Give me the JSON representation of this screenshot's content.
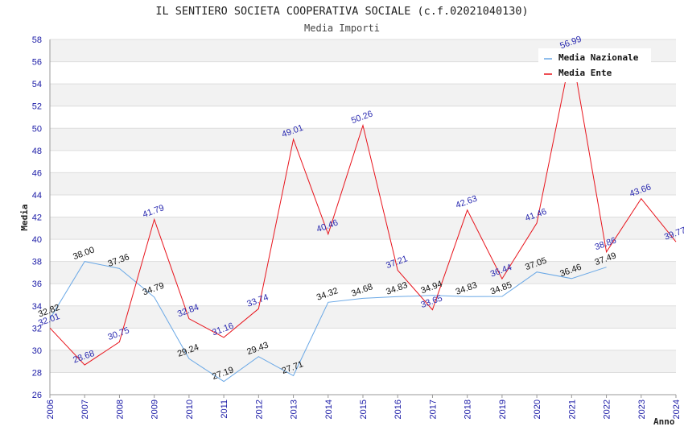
{
  "chart_data": {
    "type": "line",
    "title": "IL SENTIERO SOCIETA COOPERATIVA SOCIALE (c.f.02021040130)",
    "subtitle": "Media Importi",
    "xlabel": "Anno",
    "ylabel": "Media",
    "ylim": [
      26,
      58
    ],
    "ytick_step": 2,
    "grid": true,
    "legend_position": "top-right",
    "categories": [
      "2006",
      "2007",
      "2008",
      "2009",
      "2010",
      "2011",
      "2012",
      "2013",
      "2014",
      "2015",
      "2016",
      "2017",
      "2018",
      "2019",
      "2020",
      "2021",
      "2022",
      "2023",
      "2024"
    ],
    "series": [
      {
        "name": "Media Nazionale",
        "color": "#6aa8e6",
        "label_color": "#111111",
        "values": [
          32.82,
          38.0,
          37.36,
          34.79,
          29.24,
          27.19,
          29.43,
          27.71,
          34.32,
          34.68,
          34.83,
          34.94,
          34.83,
          34.85,
          37.05,
          36.46,
          37.49,
          null,
          null
        ],
        "labels": [
          "32.82",
          "38.00",
          "37.36",
          "34.79",
          "29.24",
          "27.19",
          "29.43",
          "27.71",
          "34.32",
          "34.68",
          "34.83",
          "34.94",
          "34.83",
          "34.85",
          "37.05",
          "36.46",
          "37.49",
          null,
          null
        ]
      },
      {
        "name": "Media Ente",
        "color": "#e8141c",
        "label_color": "#2a2ab0",
        "values": [
          32.01,
          28.68,
          30.75,
          41.79,
          32.84,
          31.16,
          33.74,
          49.01,
          40.46,
          50.26,
          37.21,
          33.65,
          42.63,
          36.44,
          41.46,
          56.99,
          38.86,
          43.66,
          39.77
        ],
        "labels": [
          "32.01",
          "28.68",
          "30.75",
          "41.79",
          "32.84",
          "31.16",
          "33.74",
          "49.01",
          "40.46",
          "50.26",
          "37.21",
          "33.65",
          "42.63",
          "36.44",
          "41.46",
          "56.99",
          "38.86",
          "43.66",
          "39.77"
        ]
      }
    ]
  }
}
